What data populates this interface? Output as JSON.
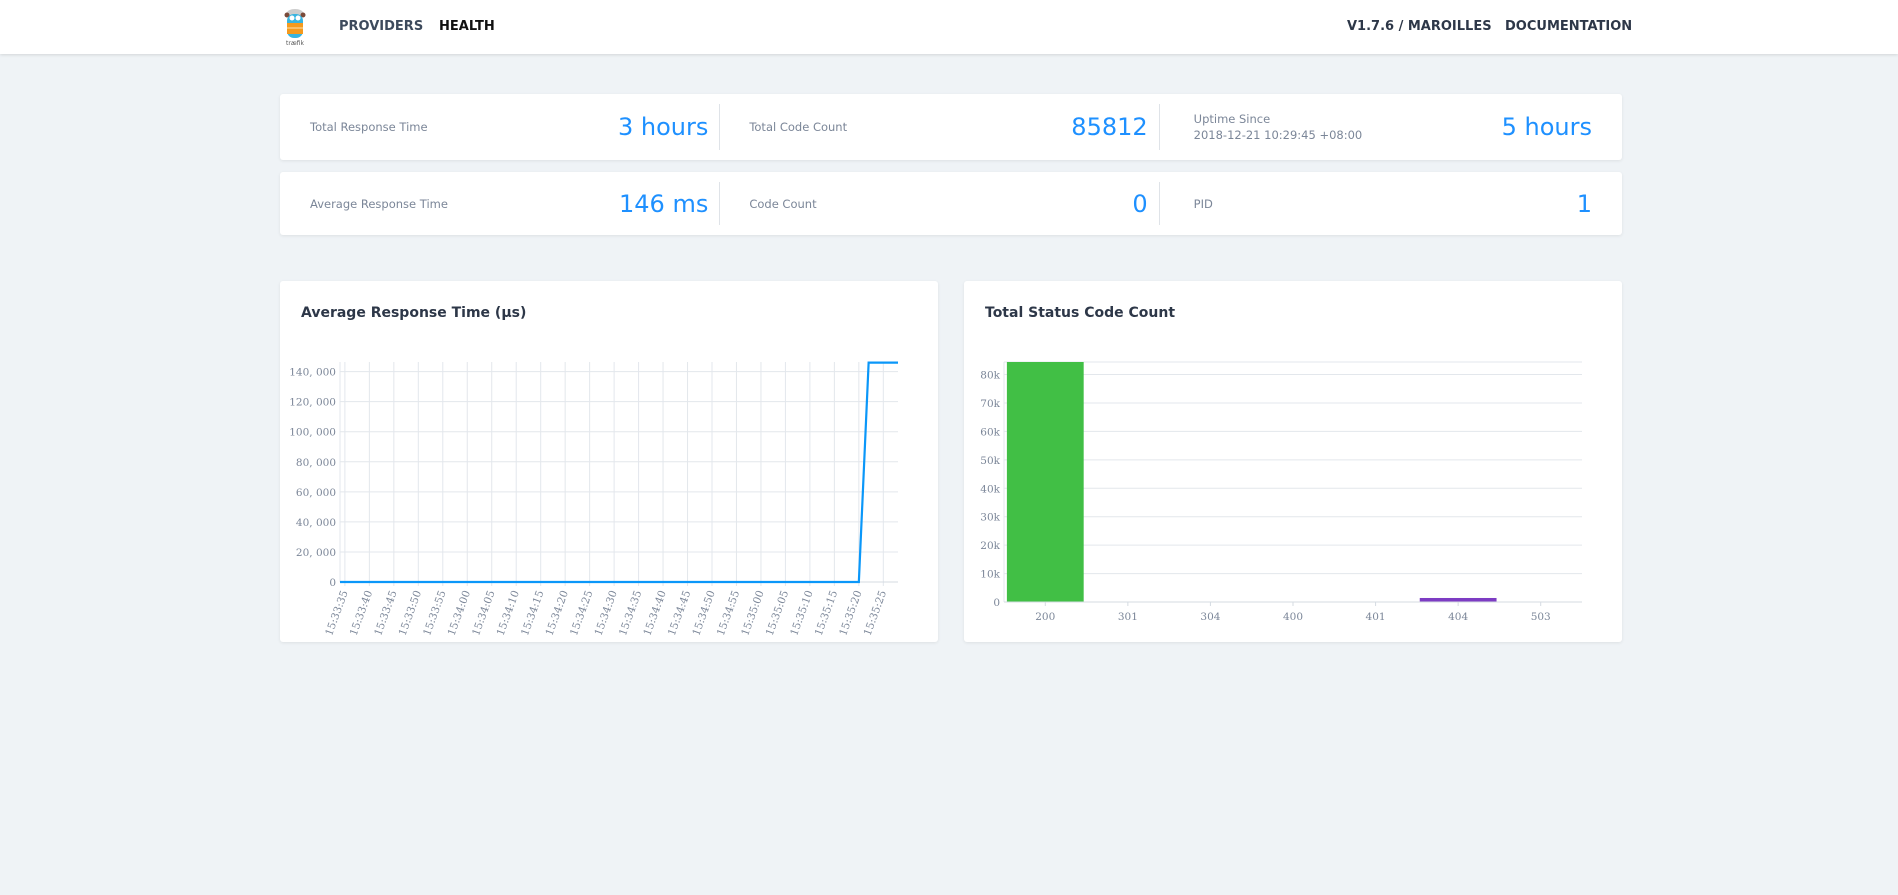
{
  "header": {
    "logo_text": "træfik",
    "nav": [
      {
        "label": "PROVIDERS",
        "active": false
      },
      {
        "label": "HEALTH",
        "active": true
      }
    ],
    "version": "V1.7.6 / MAROILLES",
    "docs": "DOCUMENTATION"
  },
  "stats": {
    "row1": [
      {
        "label": "Total Response Time",
        "value": "3 hours"
      },
      {
        "label": "Total Code Count",
        "value": "85812"
      },
      {
        "label": "Uptime Since",
        "sublabel": "2018-12-21 10:29:45 +08:00",
        "value": "5 hours"
      }
    ],
    "row2": [
      {
        "label": "Average Response Time",
        "value": "146 ms"
      },
      {
        "label": "Code Count",
        "value": "0"
      },
      {
        "label": "PID",
        "value": "1"
      }
    ]
  },
  "colors": {
    "accent": "#1e90ff",
    "line": "#0a97f9",
    "bar_200": "#41bf45",
    "bar_404": "#7d3cc3"
  },
  "chart_data": [
    {
      "type": "line",
      "title": "Average Response Time (µs)",
      "x_ticks": [
        "15:33:35",
        "15:33:40",
        "15:33:45",
        "15:33:50",
        "15:33:55",
        "15:34:00",
        "15:34:05",
        "15:34:10",
        "15:34:15",
        "15:34:20",
        "15:34:25",
        "15:34:30",
        "15:34:35",
        "15:34:40",
        "15:34:45",
        "15:34:50",
        "15:34:55",
        "15:35:00",
        "15:35:05",
        "15:35:10",
        "15:35:15",
        "15:35:20",
        "15:35:25"
      ],
      "y_ticks": [
        "0",
        "20, 000",
        "40, 000",
        "60, 000",
        "80, 000",
        "100, 000",
        "120, 000",
        "140, 000"
      ],
      "xlim": [
        "15:33:34",
        "15:35:28"
      ],
      "ylim": [
        0,
        146400
      ],
      "points": [
        [
          "15:33:34",
          0
        ],
        [
          "15:35:20",
          0
        ],
        [
          "15:35:22",
          146000
        ],
        [
          "15:35:28",
          146000
        ]
      ],
      "grid": true
    },
    {
      "type": "bar",
      "title": "Total Status Code Count",
      "categories": [
        "200",
        "301",
        "304",
        "400",
        "401",
        "404",
        "503"
      ],
      "values": [
        84400,
        0,
        0,
        0,
        0,
        1412,
        0
      ],
      "y_ticks": [
        "0",
        "10k",
        "20k",
        "30k",
        "40k",
        "50k",
        "60k",
        "70k",
        "80k"
      ],
      "ylim": [
        0,
        84400
      ],
      "grid": true
    }
  ]
}
